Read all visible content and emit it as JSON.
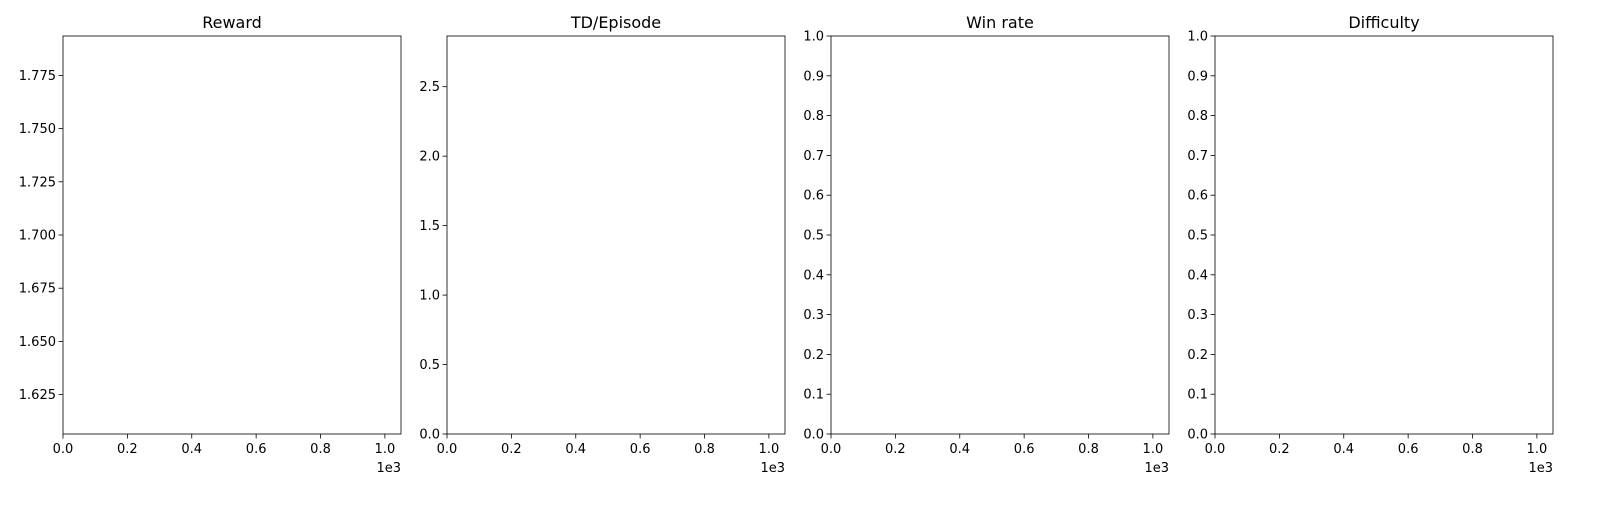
{
  "chart_data": [
    {
      "type": "line",
      "title": "Reward",
      "xlabel": "",
      "ylabel": "",
      "xlim": [
        0,
        1050
      ],
      "ylim": [
        1.6065,
        1.7935
      ],
      "x_ticks": [
        0,
        200,
        400,
        600,
        800,
        1000
      ],
      "x_tick_labels": [
        "0.0",
        "0.2",
        "0.4",
        "0.6",
        "0.8",
        "1.0"
      ],
      "x_offset_label": "1e3",
      "y_ticks": [
        1.625,
        1.65,
        1.675,
        1.7,
        1.725,
        1.75,
        1.775
      ],
      "y_tick_labels": [
        "1.625",
        "1.650",
        "1.675",
        "1.700",
        "1.725",
        "1.750",
        "1.775"
      ],
      "grid": false,
      "series": []
    },
    {
      "type": "line",
      "title": "TD/Episode",
      "xlabel": "",
      "ylabel": "",
      "xlim": [
        0,
        1050
      ],
      "ylim": [
        0,
        2.865
      ],
      "x_ticks": [
        0,
        200,
        400,
        600,
        800,
        1000
      ],
      "x_tick_labels": [
        "0.0",
        "0.2",
        "0.4",
        "0.6",
        "0.8",
        "1.0"
      ],
      "x_offset_label": "1e3",
      "y_ticks": [
        0,
        0.5,
        1.0,
        1.5,
        2.0,
        2.5
      ],
      "y_tick_labels": [
        "0.0",
        "0.5",
        "1.0",
        "1.5",
        "2.0",
        "2.5"
      ],
      "grid": false,
      "series": []
    },
    {
      "type": "line",
      "title": "Win rate",
      "xlabel": "",
      "ylabel": "",
      "xlim": [
        0,
        1050
      ],
      "ylim": [
        0,
        1.0
      ],
      "x_ticks": [
        0,
        200,
        400,
        600,
        800,
        1000
      ],
      "x_tick_labels": [
        "0.0",
        "0.2",
        "0.4",
        "0.6",
        "0.8",
        "1.0"
      ],
      "x_offset_label": "1e3",
      "y_ticks": [
        0,
        0.1,
        0.2,
        0.3,
        0.4,
        0.5,
        0.6,
        0.7,
        0.8,
        0.9,
        1.0
      ],
      "y_tick_labels": [
        "0.0",
        "0.1",
        "0.2",
        "0.3",
        "0.4",
        "0.5",
        "0.6",
        "0.7",
        "0.8",
        "0.9",
        "1.0"
      ],
      "grid": false,
      "series": []
    },
    {
      "type": "line",
      "title": "Difficulty",
      "xlabel": "",
      "ylabel": "",
      "xlim": [
        0,
        1050
      ],
      "ylim": [
        0,
        1.0
      ],
      "x_ticks": [
        0,
        200,
        400,
        600,
        800,
        1000
      ],
      "x_tick_labels": [
        "0.0",
        "0.2",
        "0.4",
        "0.6",
        "0.8",
        "1.0"
      ],
      "x_offset_label": "1e3",
      "y_ticks": [
        0,
        0.1,
        0.2,
        0.3,
        0.4,
        0.5,
        0.6,
        0.7,
        0.8,
        0.9,
        1.0
      ],
      "y_tick_labels": [
        "0.0",
        "0.1",
        "0.2",
        "0.3",
        "0.4",
        "0.5",
        "0.6",
        "0.7",
        "0.8",
        "0.9",
        "1.0"
      ],
      "grid": false,
      "series": []
    }
  ]
}
